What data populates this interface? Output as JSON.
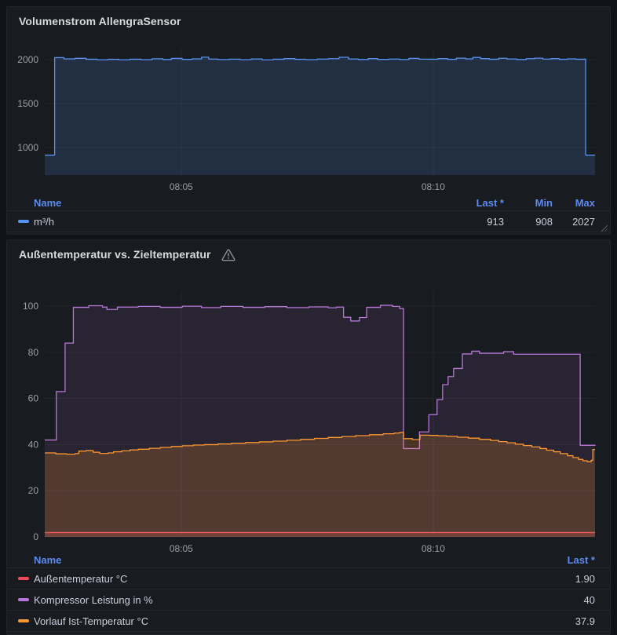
{
  "page": {
    "background": "#111217",
    "panel_background": "#181b1f"
  },
  "panel1": {
    "title": "Volumenstrom AllengraSensor",
    "legend": {
      "headers": {
        "name": "Name",
        "last": "Last *",
        "min": "Min",
        "max": "Max"
      },
      "rows": [
        {
          "name": "m³/h",
          "color": "#5794f2",
          "last": "913",
          "min": "908",
          "max": "2027"
        }
      ]
    }
  },
  "panel2": {
    "title": "Außentemperatur vs. Zieltemperatur",
    "warning_icon": "warning-triangle",
    "legend": {
      "headers": {
        "name": "Name",
        "last": "Last *"
      },
      "rows": [
        {
          "name": "Außentemperatur °C",
          "color": "#f2495c",
          "last": "1.90"
        },
        {
          "name": "Kompressor Leistung in %",
          "color": "#b877d9",
          "last": "40"
        },
        {
          "name": "Vorlauf Ist-Temperatur °C",
          "color": "#ff9830",
          "last": "37.9"
        }
      ]
    }
  },
  "chart_data": [
    {
      "type": "area",
      "title": "Volumenstrom AllengraSensor",
      "ylabel": "m³/h",
      "ylim": [
        687,
        2133
      ],
      "yticks": [
        1000,
        1500,
        2000
      ],
      "xticks": [
        {
          "f": 0.248,
          "label": "08:05"
        },
        {
          "f": 0.706,
          "label": "08:10"
        }
      ],
      "grid": true,
      "legend_position": "bottom-table",
      "stats": {
        "last": 913,
        "min": 908,
        "max": 2027
      },
      "series": [
        {
          "name": "m³/h",
          "color": "#5794f2",
          "fill_opacity": 0.16,
          "points": [
            [
              0,
              913
            ],
            [
              0.017,
              913
            ],
            [
              0.018,
              2022
            ],
            [
              0.035,
              2008
            ],
            [
              0.055,
              2014
            ],
            [
              0.075,
              2004
            ],
            [
              0.095,
              1998
            ],
            [
              0.115,
              2003
            ],
            [
              0.135,
              1998
            ],
            [
              0.155,
              2004
            ],
            [
              0.175,
              1999
            ],
            [
              0.195,
              2009
            ],
            [
              0.215,
              2001
            ],
            [
              0.23,
              2013
            ],
            [
              0.25,
              2002
            ],
            [
              0.268,
              2008
            ],
            [
              0.285,
              2027
            ],
            [
              0.298,
              2006
            ],
            [
              0.315,
              2000
            ],
            [
              0.335,
              2005
            ],
            [
              0.355,
              1999
            ],
            [
              0.375,
              2007
            ],
            [
              0.395,
              1997
            ],
            [
              0.415,
              2004
            ],
            [
              0.435,
              2011
            ],
            [
              0.455,
              2003
            ],
            [
              0.475,
              1999
            ],
            [
              0.495,
              2006
            ],
            [
              0.515,
              2010
            ],
            [
              0.535,
              2026
            ],
            [
              0.552,
              2007
            ],
            [
              0.57,
              2001
            ],
            [
              0.588,
              2011
            ],
            [
              0.605,
              2002
            ],
            [
              0.625,
              2006
            ],
            [
              0.645,
              2000
            ],
            [
              0.662,
              2013
            ],
            [
              0.68,
              2005
            ],
            [
              0.698,
              2004
            ],
            [
              0.715,
              2011
            ],
            [
              0.732,
              2003
            ],
            [
              0.748,
              2016
            ],
            [
              0.765,
              2008
            ],
            [
              0.778,
              2024
            ],
            [
              0.792,
              2011
            ],
            [
              0.808,
              2004
            ],
            [
              0.825,
              2015
            ],
            [
              0.84,
              2007
            ],
            [
              0.858,
              2001
            ],
            [
              0.875,
              2010
            ],
            [
              0.89,
              2016
            ],
            [
              0.905,
              2006
            ],
            [
              0.92,
              2011
            ],
            [
              0.935,
              2003
            ],
            [
              0.95,
              2008
            ],
            [
              0.965,
              2004
            ],
            [
              0.982,
              2006
            ],
            [
              0.983,
              913
            ],
            [
              1,
              913
            ]
          ]
        }
      ]
    },
    {
      "type": "area",
      "title": "Außentemperatur vs. Zieltemperatur",
      "ylim": [
        0,
        106.5
      ],
      "yticks": [
        0,
        20,
        40,
        60,
        80,
        100
      ],
      "xticks": [
        {
          "f": 0.248,
          "label": "08:05"
        },
        {
          "f": 0.706,
          "label": "08:10"
        }
      ],
      "grid": true,
      "legend_position": "bottom-table",
      "series": [
        {
          "name": "Außentemperatur °C",
          "color": "#f2495c",
          "fill_opacity": 0.22,
          "last": 1.9,
          "points": [
            [
              0,
              1.9
            ],
            [
              1,
              1.9
            ]
          ]
        },
        {
          "name": "Kompressor Leistung in %",
          "color": "#b877d9",
          "fill_opacity": 0.1,
          "last": 40,
          "points": [
            [
              0,
              42
            ],
            [
              0.021,
              63
            ],
            [
              0.037,
              84
            ],
            [
              0.052,
              99.5
            ],
            [
              0.08,
              100.2
            ],
            [
              0.105,
              99.6
            ],
            [
              0.113,
              98.6
            ],
            [
              0.132,
              99.6
            ],
            [
              0.17,
              99.9
            ],
            [
              0.21,
              99.5
            ],
            [
              0.25,
              100
            ],
            [
              0.285,
              99.4
            ],
            [
              0.32,
              99.9
            ],
            [
              0.36,
              99.5
            ],
            [
              0.4,
              99.8
            ],
            [
              0.44,
              99.4
            ],
            [
              0.48,
              99.7
            ],
            [
              0.515,
              99.3
            ],
            [
              0.53,
              99.6
            ],
            [
              0.543,
              95.2
            ],
            [
              0.556,
              93.6
            ],
            [
              0.572,
              95.1
            ],
            [
              0.585,
              99.5
            ],
            [
              0.61,
              100.4
            ],
            [
              0.632,
              99.9
            ],
            [
              0.645,
              99
            ],
            [
              0.652,
              38.3
            ],
            [
              0.681,
              45.5
            ],
            [
              0.698,
              53
            ],
            [
              0.713,
              59.5
            ],
            [
              0.723,
              66
            ],
            [
              0.733,
              69.5
            ],
            [
              0.743,
              73
            ],
            [
              0.759,
              79.3
            ],
            [
              0.776,
              80.5
            ],
            [
              0.79,
              79.6
            ],
            [
              0.834,
              80.3
            ],
            [
              0.852,
              79.2
            ],
            [
              0.973,
              39.7
            ],
            [
              1,
              40
            ]
          ]
        },
        {
          "name": "Vorlauf Ist-Temperatur °C",
          "color": "#ff9830",
          "fill_opacity": 0.2,
          "last": 37.9,
          "points": [
            [
              0,
              36.4
            ],
            [
              0.02,
              36
            ],
            [
              0.04,
              35.8
            ],
            [
              0.055,
              36.1
            ],
            [
              0.062,
              37.2
            ],
            [
              0.075,
              37.4
            ],
            [
              0.088,
              36.7
            ],
            [
              0.1,
              36.2
            ],
            [
              0.115,
              36.4
            ],
            [
              0.125,
              36.9
            ],
            [
              0.14,
              37.3
            ],
            [
              0.155,
              37.7
            ],
            [
              0.17,
              38
            ],
            [
              0.19,
              38.4
            ],
            [
              0.21,
              38.8
            ],
            [
              0.23,
              39.2
            ],
            [
              0.25,
              39.5
            ],
            [
              0.27,
              39.8
            ],
            [
              0.29,
              40
            ],
            [
              0.315,
              40.3
            ],
            [
              0.34,
              40.6
            ],
            [
              0.365,
              40.9
            ],
            [
              0.39,
              41.2
            ],
            [
              0.415,
              41.5
            ],
            [
              0.44,
              41.9
            ],
            [
              0.465,
              42.3
            ],
            [
              0.49,
              42.7
            ],
            [
              0.515,
              43.1
            ],
            [
              0.54,
              43.5
            ],
            [
              0.565,
              43.9
            ],
            [
              0.59,
              44.3
            ],
            [
              0.615,
              44.7
            ],
            [
              0.635,
              45
            ],
            [
              0.645,
              45.3
            ],
            [
              0.652,
              42.6
            ],
            [
              0.668,
              42.2
            ],
            [
              0.682,
              44.1
            ],
            [
              0.7,
              44
            ],
            [
              0.715,
              43.8
            ],
            [
              0.73,
              43.6
            ],
            [
              0.75,
              43.2
            ],
            [
              0.77,
              42.8
            ],
            [
              0.79,
              42.3
            ],
            [
              0.81,
              41.8
            ],
            [
              0.825,
              41.3
            ],
            [
              0.84,
              40.8
            ],
            [
              0.855,
              40.2
            ],
            [
              0.87,
              39.6
            ],
            [
              0.885,
              39
            ],
            [
              0.9,
              38.3
            ],
            [
              0.912,
              37.6
            ],
            [
              0.925,
              36.9
            ],
            [
              0.937,
              36.1
            ],
            [
              0.95,
              35.2
            ],
            [
              0.96,
              34.4
            ],
            [
              0.97,
              33.6
            ],
            [
              0.978,
              33
            ],
            [
              0.986,
              32.6
            ],
            [
              0.993,
              33.2
            ],
            [
              0.996,
              37.9
            ],
            [
              1,
              37.9
            ]
          ]
        }
      ]
    }
  ]
}
